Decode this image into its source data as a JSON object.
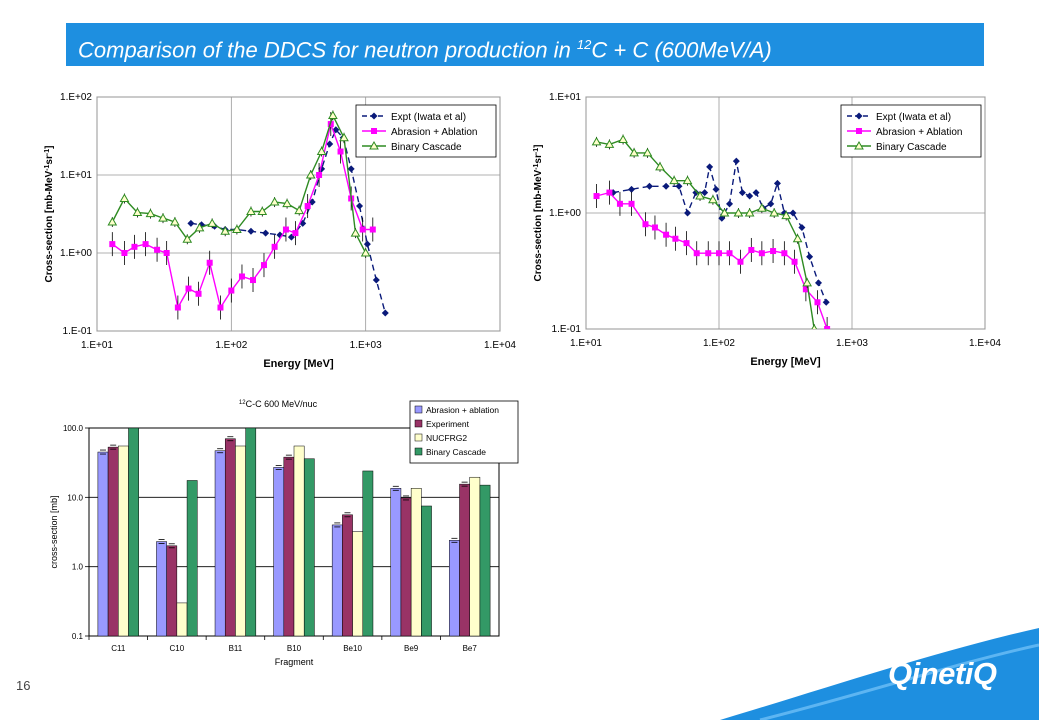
{
  "slide": {
    "title_pre": "Comparison of the DDCS for neutron production in ",
    "title_sup": "12",
    "title_post": "C + C (600MeV/A)",
    "page_number": "16",
    "logo": "QinetiQ",
    "colors": {
      "title_bar": "#1e8fe0",
      "swoosh": "#1e8fe0"
    }
  },
  "chart_data": [
    {
      "type": "line",
      "x_scale": "log",
      "y_scale": "log",
      "xlim": [
        10,
        10000
      ],
      "ylim": [
        0.1,
        100
      ],
      "xticks": [
        "1.E+01",
        "1.E+02",
        "1.E+03",
        "1.E+04"
      ],
      "yticks": [
        "1.E-01",
        "1.E+00",
        "1.E+01",
        "1.E+02"
      ],
      "xlabel": "Energy [MeV]",
      "ylabel_parts": [
        "Cross-section [mb-MeV",
        "-1",
        "sr",
        "-1",
        "]"
      ],
      "legend_placement": "top-right",
      "grid": true,
      "series": [
        {
          "name": "Expt (Iwata et al)",
          "color": "#0a1a7a",
          "style": "dashed",
          "marker": "diamond",
          "x": [
            50,
            60,
            75,
            90,
            110,
            140,
            180,
            230,
            280,
            340,
            400,
            470,
            540,
            600,
            680,
            780,
            900,
            1030,
            1200,
            1400
          ],
          "y": [
            2.4,
            2.3,
            2.2,
            2.0,
            2.0,
            1.9,
            1.8,
            1.7,
            1.6,
            2.4,
            4.5,
            12,
            25,
            38,
            30,
            12,
            4,
            1.3,
            0.45,
            0.17
          ]
        },
        {
          "name": "Abrasion + Ablation",
          "color": "#ff00ff",
          "style": "solid",
          "marker": "square",
          "x": [
            13,
            16,
            19,
            23,
            28,
            33,
            40,
            48,
            57,
            69,
            83,
            100,
            120,
            145,
            175,
            210,
            255,
            300,
            370,
            450,
            550,
            650,
            780,
            950,
            1130
          ],
          "y": [
            1.3,
            1.0,
            1.2,
            1.3,
            1.1,
            1.0,
            0.2,
            0.35,
            0.3,
            0.75,
            0.2,
            0.33,
            0.5,
            0.45,
            0.7,
            1.2,
            2.0,
            1.8,
            4.0,
            10,
            45,
            20,
            5,
            2,
            2
          ]
        },
        {
          "name": "Binary Cascade",
          "color": "#2e8b22",
          "style": "solid",
          "marker": "triangle",
          "x": [
            13,
            16,
            20,
            25,
            31,
            38,
            47,
            58,
            72,
            90,
            110,
            140,
            170,
            210,
            260,
            320,
            390,
            470,
            570,
            690,
            840,
            1000
          ],
          "y": [
            2.5,
            5.0,
            3.3,
            3.2,
            2.8,
            2.5,
            1.5,
            2.1,
            2.4,
            1.9,
            2.0,
            3.4,
            3.4,
            4.5,
            4.3,
            3.5,
            10,
            20,
            58,
            30,
            1.8,
            1.0
          ]
        }
      ]
    },
    {
      "type": "line",
      "x_scale": "log",
      "y_scale": "log",
      "xlim": [
        10,
        10000
      ],
      "ylim": [
        0.1,
        10
      ],
      "xticks": [
        "1.E+01",
        "1.E+02",
        "1.E+03",
        "1.E+04"
      ],
      "yticks": [
        "1.E-01",
        "1.E+00",
        "1.E+01"
      ],
      "xlabel": "Energy [MeV]",
      "ylabel_parts": [
        "Cross-section [mb-MeV",
        "-1",
        "sr",
        "-1",
        "]"
      ],
      "legend_placement": "top-right",
      "grid": true,
      "series": [
        {
          "name": "Expt (Iwata et al)",
          "color": "#0a1a7a",
          "style": "dashed",
          "marker": "diamond",
          "x": [
            16,
            22,
            30,
            40,
            50,
            58,
            67,
            78,
            85,
            95,
            105,
            120,
            135,
            150,
            170,
            190,
            215,
            245,
            275,
            310,
            360,
            420,
            480,
            560,
            640
          ],
          "y": [
            1.5,
            1.6,
            1.7,
            1.7,
            1.7,
            1.0,
            1.5,
            1.5,
            2.5,
            1.6,
            0.9,
            1.2,
            2.8,
            1.5,
            1.4,
            1.5,
            1.1,
            1.2,
            1.8,
            1.0,
            1.0,
            0.75,
            0.42,
            0.25,
            0.17
          ]
        },
        {
          "name": "Abrasion + Ablation",
          "color": "#ff00ff",
          "style": "solid",
          "marker": "square",
          "x": [
            12,
            15,
            18,
            22,
            28,
            33,
            40,
            47,
            57,
            68,
            83,
            100,
            120,
            145,
            175,
            210,
            255,
            310,
            370,
            450,
            550,
            650
          ],
          "y": [
            1.4,
            1.5,
            1.2,
            1.2,
            0.8,
            0.75,
            0.65,
            0.6,
            0.55,
            0.45,
            0.45,
            0.45,
            0.45,
            0.38,
            0.48,
            0.45,
            0.47,
            0.45,
            0.38,
            0.22,
            0.17,
            0.1
          ]
        },
        {
          "name": "Binary Cascade",
          "color": "#2e8b22",
          "style": "solid",
          "marker": "triangle",
          "x": [
            12,
            15,
            19,
            23,
            29,
            36,
            46,
            58,
            72,
            90,
            110,
            140,
            170,
            210,
            260,
            320,
            390,
            460,
            520
          ],
          "y": [
            4.1,
            3.9,
            4.3,
            3.3,
            3.3,
            2.5,
            1.9,
            1.9,
            1.4,
            1.3,
            1.0,
            1.0,
            1.0,
            1.1,
            1.0,
            0.95,
            0.6,
            0.25,
            0.1
          ]
        }
      ]
    },
    {
      "type": "bar",
      "y_scale": "log",
      "ylim": [
        0.1,
        100
      ],
      "title_sup": "12",
      "title": "C-C 600 MeV/nuc",
      "xlabel": "Fragment",
      "ylabel": "cross-section [mb]",
      "yticks": [
        "0.1",
        "1.0",
        "10.0",
        "100.0"
      ],
      "legend_placement": "top-right",
      "categories": [
        "C11",
        "C10",
        "B11",
        "B10",
        "Be10",
        "Be9",
        "Be7"
      ],
      "series": [
        {
          "name": "Abrasion + ablation",
          "color": "#9999ff",
          "values": [
            45,
            2.3,
            47,
            27,
            4.0,
            13.5,
            2.4
          ]
        },
        {
          "name": "Experiment",
          "color": "#993366",
          "values": [
            53,
            2.0,
            70,
            38,
            5.6,
            9.8,
            15.5
          ]
        },
        {
          "name": "NUCFRG2",
          "color": "#ffffcc",
          "values": [
            55,
            0.3,
            55,
            55,
            3.2,
            13.5,
            19.5
          ]
        },
        {
          "name": "Binary Cascade",
          "color": "#339966",
          "values": [
            100,
            17.5,
            100,
            36,
            24,
            7.5,
            15
          ]
        }
      ]
    }
  ]
}
